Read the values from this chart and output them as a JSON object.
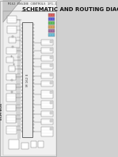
{
  "bg_color": "#d0d0d0",
  "page_bg": "#e8e8e8",
  "content_bg": "#f2f2f2",
  "header_text": "M162 ENGINE CONTROLS 1F1-1",
  "title_text": "SCHEMATIC AND ROUTING DIAGRAMS",
  "label_left": "ECM BOX",
  "header_fontsize": 2.8,
  "title_fontsize": 5.0,
  "diagram_color": "#555555",
  "line_color": "#555555",
  "box_color": "#555555",
  "light_line": "#777777",
  "fold_color": "#c0c0c0",
  "fold_edge": "#aaaaaa"
}
